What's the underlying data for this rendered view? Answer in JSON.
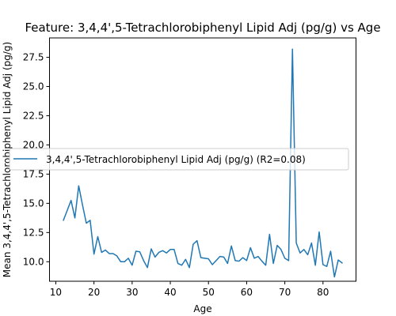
{
  "chart_data": {
    "type": "line",
    "title": "Feature: 3,4,4',5-Tetrachlorobiphenyl Lipid Adj (pg/g) vs Age",
    "xlabel": "Age",
    "ylabel": "Mean 3,4,4',5-Tetrachlorobiphenyl Lipid Adj (pg/g)",
    "xlim": [
      8.35,
      88.65
    ],
    "ylim": [
      8.33,
      29.16
    ],
    "xticks": [
      10,
      20,
      30,
      40,
      50,
      60,
      70,
      80
    ],
    "yticks": [
      10.0,
      12.5,
      15.0,
      17.5,
      20.0,
      22.5,
      25.0,
      27.5
    ],
    "grid": false,
    "legend_position": "center-left",
    "series": [
      {
        "name": "3,4,4',5-Tetrachlorobiphenyl Lipid Adj (pg/g) (R2=0.08)",
        "color": "#1f77b4",
        "x": [
          12,
          13,
          14,
          15,
          16,
          17,
          18,
          19,
          20,
          21,
          22,
          23,
          24,
          25,
          26,
          27,
          28,
          29,
          30,
          31,
          32,
          33,
          34,
          35,
          36,
          37,
          38,
          39,
          40,
          41,
          42,
          43,
          44,
          45,
          46,
          47,
          48,
          49,
          50,
          51,
          52,
          53,
          54,
          55,
          56,
          57,
          58,
          59,
          60,
          61,
          62,
          63,
          64,
          65,
          66,
          67,
          68,
          69,
          70,
          71,
          72,
          73,
          74,
          75,
          76,
          77,
          78,
          79,
          80,
          81,
          82,
          83,
          84,
          85
        ],
        "y": [
          13.55,
          14.4,
          15.25,
          13.75,
          16.5,
          14.85,
          13.3,
          13.55,
          10.65,
          12.15,
          10.8,
          11.0,
          10.7,
          10.7,
          10.5,
          10.0,
          10.0,
          10.3,
          9.7,
          10.9,
          10.85,
          10.1,
          9.5,
          11.1,
          10.4,
          10.8,
          10.95,
          10.75,
          11.05,
          11.05,
          9.85,
          9.7,
          10.2,
          9.5,
          11.5,
          11.8,
          10.35,
          10.3,
          10.25,
          9.75,
          10.1,
          10.45,
          10.4,
          9.85,
          11.35,
          10.1,
          10.05,
          10.35,
          10.1,
          11.2,
          10.3,
          10.45,
          10.05,
          9.7,
          12.35,
          9.85,
          11.4,
          11.05,
          10.3,
          10.1,
          28.2,
          11.6,
          10.75,
          11.05,
          10.6,
          11.6,
          9.7,
          12.55,
          9.75,
          9.6,
          10.9,
          8.7,
          10.15,
          9.9
        ]
      }
    ]
  }
}
